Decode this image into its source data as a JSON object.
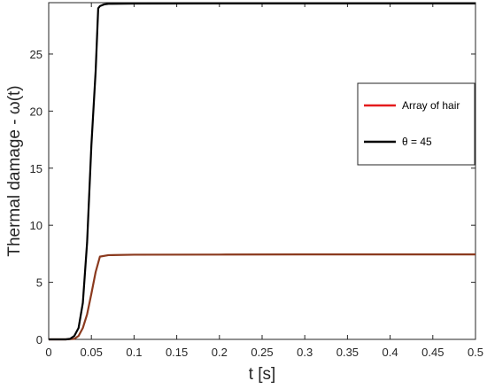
{
  "chart_data": {
    "type": "line",
    "xlabel": "t [s]",
    "ylabel": "Thermal damage - ω(t)",
    "xlim": [
      0,
      0.5
    ],
    "ylim": [
      0,
      29.5
    ],
    "xticks": [
      0,
      0.05,
      0.1,
      0.15,
      0.2,
      0.25,
      0.3,
      0.35,
      0.4,
      0.45,
      0.5
    ],
    "xtick_labels": [
      "0",
      "0.05",
      "0.1",
      "0.15",
      "0.2",
      "0.25",
      "0.3",
      "0.35",
      "0.4",
      "0.45",
      "0.5"
    ],
    "yticks": [
      0,
      5,
      10,
      15,
      20,
      25
    ],
    "ytick_labels": [
      "0",
      "5",
      "10",
      "15",
      "20",
      "25"
    ],
    "grid": false,
    "legend_position": "right",
    "series": [
      {
        "name": "Array of hair",
        "color": "#e41a1c",
        "x": [
          0,
          0.02,
          0.03,
          0.035,
          0.04,
          0.045,
          0.05,
          0.055,
          0.06,
          0.07,
          0.1,
          0.2,
          0.3,
          0.4,
          0.5
        ],
        "y": [
          0,
          0,
          0.05,
          0.3,
          1.0,
          2.2,
          4.0,
          5.9,
          7.25,
          7.38,
          7.42,
          7.43,
          7.44,
          7.44,
          7.44
        ]
      },
      {
        "name": "θ = 45",
        "color": "#000000",
        "x": [
          0,
          0.02,
          0.025,
          0.03,
          0.035,
          0.04,
          0.045,
          0.05,
          0.055,
          0.058,
          0.06,
          0.065,
          0.07,
          0.1,
          0.2,
          0.3,
          0.4,
          0.5
        ],
        "y": [
          0,
          0,
          0.05,
          0.3,
          1.0,
          3.2,
          8.5,
          17.0,
          23.5,
          29.0,
          29.2,
          29.35,
          29.4,
          29.42,
          29.43,
          29.43,
          29.43,
          29.43
        ]
      }
    ]
  }
}
